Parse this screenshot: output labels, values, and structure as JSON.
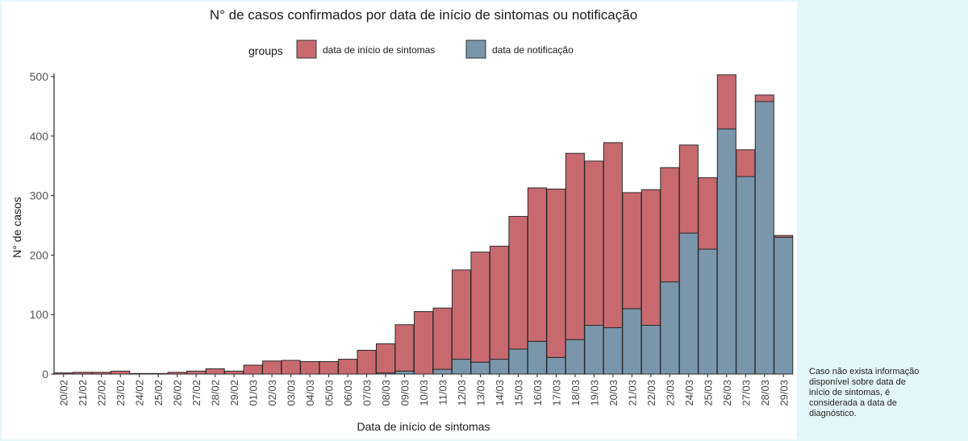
{
  "chart_data": {
    "type": "bar",
    "stacked": true,
    "title": "N° de casos confirmados por data de início de sintomas ou notificação",
    "xlabel": "Data de início de sintomas",
    "ylabel": "N° de casos",
    "ylim": [
      0,
      500
    ],
    "yticks": [
      0,
      100,
      200,
      300,
      400,
      500
    ],
    "grid": false,
    "legend": {
      "title": "groups",
      "position": "top"
    },
    "categories": [
      "20/02",
      "21/02",
      "22/02",
      "23/02",
      "24/02",
      "25/02",
      "26/02",
      "27/02",
      "28/02",
      "29/02",
      "01/03",
      "02/03",
      "03/03",
      "04/03",
      "05/03",
      "06/03",
      "07/03",
      "08/03",
      "09/03",
      "10/03",
      "11/03",
      "12/03",
      "13/03",
      "14/03",
      "15/03",
      "16/03",
      "17/03",
      "18/03",
      "19/03",
      "20/03",
      "21/03",
      "22/03",
      "23/03",
      "24/03",
      "25/03",
      "26/03",
      "27/03",
      "28/03",
      "29/03"
    ],
    "series": [
      {
        "name": "data de notificação",
        "color": "#7a96ab",
        "values": [
          0,
          0,
          0,
          0,
          0,
          0,
          0,
          0,
          0,
          0,
          0,
          0,
          0,
          0,
          0,
          0,
          0,
          2,
          5,
          0,
          8,
          25,
          20,
          25,
          42,
          55,
          28,
          58,
          82,
          78,
          110,
          82,
          155,
          237,
          210,
          412,
          332,
          458,
          230
        ]
      },
      {
        "name": "data de início de sintomas",
        "color": "#c86970",
        "values": [
          2,
          3,
          3,
          5,
          1,
          1,
          3,
          5,
          9,
          5,
          15,
          22,
          23,
          21,
          21,
          25,
          40,
          49,
          78,
          105,
          103,
          150,
          185,
          190,
          223,
          258,
          283,
          313,
          276,
          311,
          195,
          228,
          192,
          148,
          120,
          91,
          45,
          11,
          3
        ]
      }
    ]
  },
  "note": "Caso não exista informação\ndisponível sobre data de\ninício de sintomas, é\nconsiderada a data de\ndiagnóstico."
}
